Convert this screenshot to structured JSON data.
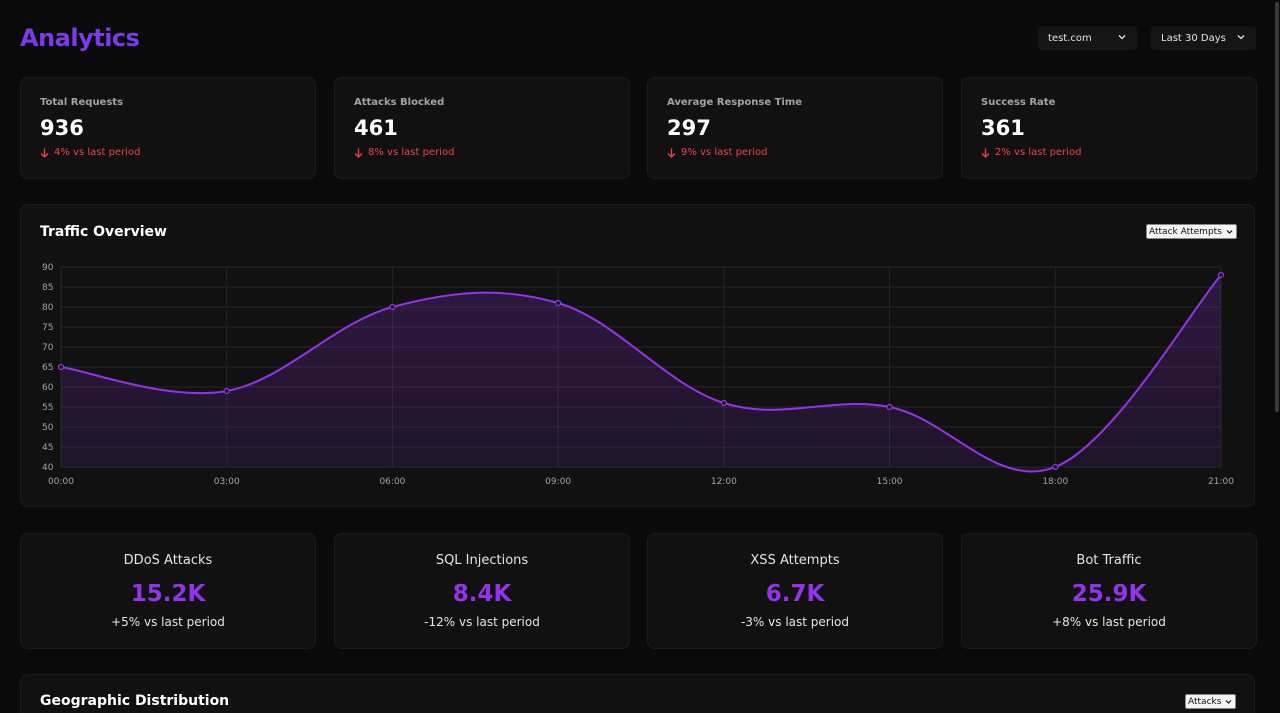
{
  "header": {
    "title": "Analytics",
    "domain_select": "test.com",
    "range_select": "Last 30 Days"
  },
  "stats": [
    {
      "label": "Total Requests",
      "value": "936",
      "change": "4% vs last period"
    },
    {
      "label": "Attacks Blocked",
      "value": "461",
      "change": "8% vs last period"
    },
    {
      "label": "Average Response Time",
      "value": "297",
      "change": "9% vs last period"
    },
    {
      "label": "Success Rate",
      "value": "361",
      "change": "2% vs last period"
    }
  ],
  "traffic": {
    "title": "Traffic Overview",
    "select": "Attack Attempts"
  },
  "chart_data": {
    "type": "line",
    "x": [
      "00:00",
      "03:00",
      "06:00",
      "09:00",
      "12:00",
      "15:00",
      "18:00",
      "21:00"
    ],
    "series": [
      {
        "values": [
          65,
          59,
          80,
          81,
          56,
          55,
          40,
          88
        ]
      }
    ],
    "ylim": [
      40,
      90
    ],
    "yticks": [
      "40",
      "45",
      "50",
      "55",
      "60",
      "65",
      "70",
      "75",
      "80",
      "85",
      "90"
    ],
    "grid": true,
    "fill": true,
    "color": "#9333ea"
  },
  "attack_types": [
    {
      "name": "DDoS Attacks",
      "amount": "15.2K",
      "delta": "+5% vs last period"
    },
    {
      "name": "SQL Injections",
      "amount": "8.4K",
      "delta": "-12% vs last period"
    },
    {
      "name": "XSS Attempts",
      "amount": "6.7K",
      "delta": "-3% vs last period"
    },
    {
      "name": "Bot Traffic",
      "amount": "25.9K",
      "delta": "+8% vs last period"
    }
  ],
  "geo": {
    "title": "Geographic Distribution",
    "select": "Attacks"
  },
  "colors": {
    "accent": "#7c3aed",
    "negative": "#ef4444",
    "line": "#9333ea"
  }
}
